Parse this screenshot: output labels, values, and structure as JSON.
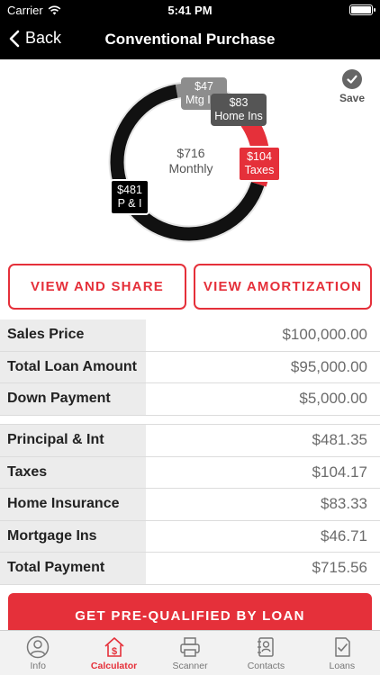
{
  "status_bar": {
    "carrier": "Carrier",
    "time": "5:41 PM"
  },
  "nav": {
    "back_label": "Back",
    "title": "Conventional Purchase"
  },
  "save_label": "Save",
  "chart": {
    "center_amount": "$716",
    "center_label": "Monthly",
    "slices": [
      {
        "name": "P & I",
        "amount": "$481",
        "value": 481.35,
        "color": "#111111"
      },
      {
        "name": "Taxes",
        "amount": "$104",
        "value": 104.17,
        "color": "#e5303a"
      },
      {
        "name": "Home Ins",
        "amount": "$83",
        "value": 83.33,
        "color": "#555555"
      },
      {
        "name": "Mtg Ins",
        "amount": "$47",
        "value": 46.71,
        "color": "#8d8d8d"
      }
    ]
  },
  "buttons": {
    "view_share": "VIEW AND SHARE",
    "view_amortization": "VIEW AMORTIZATION",
    "prequalify": "GET PRE-QUALIFIED BY LOAN"
  },
  "loan_table": [
    {
      "label": "Sales Price",
      "value": "$100,000.00"
    },
    {
      "label": "Total Loan Amount",
      "value": "$95,000.00"
    },
    {
      "label": "Down Payment",
      "value": "$5,000.00"
    }
  ],
  "payment_table": [
    {
      "label": "Principal & Int",
      "value": "$481.35"
    },
    {
      "label": "Taxes",
      "value": "$104.17"
    },
    {
      "label": "Home Insurance",
      "value": "$83.33"
    },
    {
      "label": "Mortgage Ins",
      "value": "$46.71"
    },
    {
      "label": "Total Payment",
      "value": "$715.56"
    }
  ],
  "tabs": [
    {
      "label": "Info",
      "icon": "person-circle-icon",
      "active": false
    },
    {
      "label": "Calculator",
      "icon": "house-dollar-icon",
      "active": true
    },
    {
      "label": "Scanner",
      "icon": "scanner-icon",
      "active": false
    },
    {
      "label": "Contacts",
      "icon": "contacts-icon",
      "active": false
    },
    {
      "label": "Loans",
      "icon": "loans-document-icon",
      "active": false
    }
  ],
  "colors": {
    "accent": "#e5303a",
    "nav_bg": "#000000"
  }
}
